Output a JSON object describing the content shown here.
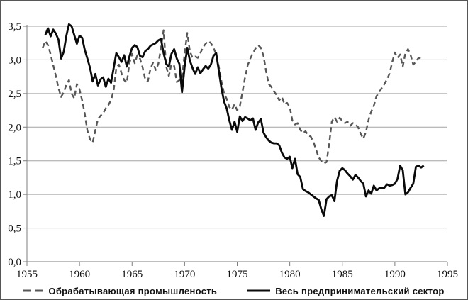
{
  "chart_data": {
    "type": "line",
    "title": "",
    "xlabel": "",
    "ylabel": "",
    "xlim": [
      1955,
      1995
    ],
    "ylim": [
      0,
      3.5
    ],
    "grid": true,
    "legend_position": "bottom",
    "decimal_separator": ",",
    "x_ticks": [
      1955,
      1960,
      1965,
      1970,
      1975,
      1980,
      1985,
      1990,
      1995
    ],
    "y_ticks": [
      {
        "value": 0.0,
        "label": "0,0"
      },
      {
        "value": 0.5,
        "label": "0,5"
      },
      {
        "value": 1.0,
        "label": "1,0"
      },
      {
        "value": 1.5,
        "label": "1,5"
      },
      {
        "value": 2.0,
        "label": "2,0"
      },
      {
        "value": 2.5,
        "label": "2,5"
      },
      {
        "value": 3.0,
        "label": "3,0"
      },
      {
        "value": 3.5,
        "label": "3,5"
      }
    ],
    "colors": {
      "grid": "#a3a3a3",
      "axis": "#7d7d7d",
      "label": "#111111"
    },
    "series": [
      {
        "name": "Обрабатывающая промышленость",
        "style": "dashed",
        "color": "#575757",
        "points": [
          [
            1956.5,
            3.18
          ],
          [
            1956.75,
            3.28
          ],
          [
            1957.0,
            3.22
          ],
          [
            1957.25,
            3.08
          ],
          [
            1957.5,
            2.92
          ],
          [
            1957.75,
            2.76
          ],
          [
            1958.0,
            2.58
          ],
          [
            1958.25,
            2.45
          ],
          [
            1958.5,
            2.52
          ],
          [
            1958.75,
            2.63
          ],
          [
            1959.0,
            2.7
          ],
          [
            1959.25,
            2.5
          ],
          [
            1959.5,
            2.43
          ],
          [
            1959.75,
            2.64
          ],
          [
            1960.0,
            2.56
          ],
          [
            1960.25,
            2.4
          ],
          [
            1960.5,
            2.2
          ],
          [
            1960.75,
            1.95
          ],
          [
            1961.0,
            1.82
          ],
          [
            1961.25,
            1.77
          ],
          [
            1961.5,
            1.95
          ],
          [
            1961.75,
            2.12
          ],
          [
            1962.0,
            2.17
          ],
          [
            1962.25,
            2.21
          ],
          [
            1962.5,
            2.28
          ],
          [
            1962.75,
            2.33
          ],
          [
            1963.0,
            2.4
          ],
          [
            1963.25,
            2.55
          ],
          [
            1963.5,
            2.88
          ],
          [
            1963.75,
            2.93
          ],
          [
            1964.0,
            2.8
          ],
          [
            1964.25,
            2.7
          ],
          [
            1964.5,
            2.66
          ],
          [
            1964.75,
            2.95
          ],
          [
            1965.0,
            3.09
          ],
          [
            1965.25,
            2.95
          ],
          [
            1965.5,
            3.07
          ],
          [
            1965.75,
            3.02
          ],
          [
            1966.0,
            2.89
          ],
          [
            1966.25,
            2.71
          ],
          [
            1966.5,
            2.68
          ],
          [
            1966.75,
            2.87
          ],
          [
            1967.0,
            2.96
          ],
          [
            1967.25,
            2.85
          ],
          [
            1967.5,
            2.94
          ],
          [
            1967.75,
            3.18
          ],
          [
            1968.0,
            3.44
          ],
          [
            1968.25,
            2.9
          ],
          [
            1968.5,
            2.76
          ],
          [
            1968.75,
            2.94
          ],
          [
            1969.0,
            2.91
          ],
          [
            1969.25,
            2.67
          ],
          [
            1969.5,
            2.7
          ],
          [
            1969.75,
            2.72
          ],
          [
            1970.0,
            3.1
          ],
          [
            1970.25,
            3.4
          ],
          [
            1970.5,
            3.13
          ],
          [
            1970.75,
            3.03
          ],
          [
            1971.0,
            3.05
          ],
          [
            1971.25,
            3.03
          ],
          [
            1971.5,
            3.1
          ],
          [
            1971.75,
            3.19
          ],
          [
            1972.0,
            3.24
          ],
          [
            1972.25,
            3.28
          ],
          [
            1972.5,
            3.25
          ],
          [
            1972.75,
            3.18
          ],
          [
            1973.0,
            3.08
          ],
          [
            1973.25,
            2.9
          ],
          [
            1973.5,
            2.68
          ],
          [
            1973.75,
            2.5
          ],
          [
            1974.0,
            2.42
          ],
          [
            1974.25,
            2.3
          ],
          [
            1974.5,
            2.26
          ],
          [
            1974.75,
            2.34
          ],
          [
            1975.0,
            2.25
          ],
          [
            1975.25,
            2.31
          ],
          [
            1975.5,
            2.52
          ],
          [
            1975.75,
            2.74
          ],
          [
            1976.0,
            2.92
          ],
          [
            1976.25,
            3.02
          ],
          [
            1976.5,
            3.1
          ],
          [
            1976.75,
            3.17
          ],
          [
            1977.0,
            3.22
          ],
          [
            1977.25,
            3.18
          ],
          [
            1977.5,
            3.06
          ],
          [
            1977.75,
            2.83
          ],
          [
            1978.0,
            2.64
          ],
          [
            1978.25,
            2.6
          ],
          [
            1978.5,
            2.53
          ],
          [
            1978.75,
            2.48
          ],
          [
            1979.0,
            2.4
          ],
          [
            1979.25,
            2.45
          ],
          [
            1979.5,
            2.34
          ],
          [
            1979.75,
            2.36
          ],
          [
            1980.0,
            2.3
          ],
          [
            1980.25,
            2.1
          ],
          [
            1980.5,
            2.04
          ],
          [
            1980.75,
            2.06
          ],
          [
            1981.0,
            1.96
          ],
          [
            1981.25,
            1.91
          ],
          [
            1981.5,
            1.94
          ],
          [
            1981.75,
            1.88
          ],
          [
            1982.0,
            1.86
          ],
          [
            1982.25,
            1.78
          ],
          [
            1982.5,
            1.67
          ],
          [
            1982.75,
            1.55
          ],
          [
            1983.0,
            1.5
          ],
          [
            1983.25,
            1.46
          ],
          [
            1983.5,
            1.48
          ],
          [
            1983.75,
            1.75
          ],
          [
            1984.0,
            2.08
          ],
          [
            1984.25,
            2.15
          ],
          [
            1984.5,
            2.08
          ],
          [
            1984.75,
            2.14
          ],
          [
            1985.0,
            2.09
          ],
          [
            1985.25,
            2.06
          ],
          [
            1985.5,
            2.08
          ],
          [
            1985.75,
            2.02
          ],
          [
            1986.0,
            2.06
          ],
          [
            1986.25,
            2.04
          ],
          [
            1986.5,
            2.0
          ],
          [
            1986.75,
            1.9
          ],
          [
            1987.0,
            1.83
          ],
          [
            1987.25,
            1.93
          ],
          [
            1987.5,
            2.11
          ],
          [
            1987.75,
            2.23
          ],
          [
            1988.0,
            2.32
          ],
          [
            1988.25,
            2.46
          ],
          [
            1988.5,
            2.52
          ],
          [
            1988.75,
            2.58
          ],
          [
            1989.0,
            2.64
          ],
          [
            1989.25,
            2.71
          ],
          [
            1989.5,
            2.8
          ],
          [
            1989.75,
            2.97
          ],
          [
            1990.0,
            3.11
          ],
          [
            1990.25,
            3.03
          ],
          [
            1990.5,
            3.08
          ],
          [
            1990.75,
            2.9
          ],
          [
            1991.0,
            3.1
          ],
          [
            1991.25,
            3.16
          ],
          [
            1991.5,
            3.07
          ],
          [
            1991.75,
            2.93
          ],
          [
            1992.0,
            2.97
          ],
          [
            1992.25,
            3.03
          ],
          [
            1992.5,
            3.02
          ]
        ]
      },
      {
        "name": "Весь предпринимательский сектор",
        "style": "solid",
        "color": "#0a0a0a",
        "points": [
          [
            1956.75,
            3.37
          ],
          [
            1957.0,
            3.47
          ],
          [
            1957.25,
            3.35
          ],
          [
            1957.5,
            3.45
          ],
          [
            1957.75,
            3.39
          ],
          [
            1958.0,
            3.3
          ],
          [
            1958.25,
            3.02
          ],
          [
            1958.5,
            3.12
          ],
          [
            1958.75,
            3.36
          ],
          [
            1959.0,
            3.53
          ],
          [
            1959.25,
            3.5
          ],
          [
            1959.5,
            3.37
          ],
          [
            1959.75,
            3.24
          ],
          [
            1960.0,
            3.36
          ],
          [
            1960.25,
            3.33
          ],
          [
            1960.5,
            3.15
          ],
          [
            1960.75,
            3.02
          ],
          [
            1961.0,
            2.88
          ],
          [
            1961.25,
            2.68
          ],
          [
            1961.5,
            2.79
          ],
          [
            1961.75,
            2.62
          ],
          [
            1962.0,
            2.71
          ],
          [
            1962.25,
            2.74
          ],
          [
            1962.5,
            2.6
          ],
          [
            1962.75,
            2.72
          ],
          [
            1963.0,
            2.66
          ],
          [
            1963.25,
            2.88
          ],
          [
            1963.5,
            3.1
          ],
          [
            1963.75,
            3.04
          ],
          [
            1964.0,
            2.97
          ],
          [
            1964.25,
            3.07
          ],
          [
            1964.5,
            2.9
          ],
          [
            1964.75,
            3.05
          ],
          [
            1965.0,
            3.18
          ],
          [
            1965.25,
            3.22
          ],
          [
            1965.5,
            3.19
          ],
          [
            1965.75,
            3.06
          ],
          [
            1966.0,
            3.04
          ],
          [
            1966.25,
            3.13
          ],
          [
            1966.5,
            3.16
          ],
          [
            1966.75,
            3.21
          ],
          [
            1967.0,
            3.23
          ],
          [
            1967.25,
            3.25
          ],
          [
            1967.5,
            3.29
          ],
          [
            1967.75,
            3.31
          ],
          [
            1968.0,
            3.1
          ],
          [
            1968.25,
            2.94
          ],
          [
            1968.5,
            2.9
          ],
          [
            1968.75,
            3.09
          ],
          [
            1969.0,
            3.16
          ],
          [
            1969.25,
            3.02
          ],
          [
            1969.5,
            2.94
          ],
          [
            1969.75,
            2.52
          ],
          [
            1970.0,
            2.9
          ],
          [
            1970.25,
            3.18
          ],
          [
            1970.5,
            2.99
          ],
          [
            1970.75,
            2.88
          ],
          [
            1971.0,
            2.79
          ],
          [
            1971.25,
            2.89
          ],
          [
            1971.5,
            2.8
          ],
          [
            1971.75,
            2.86
          ],
          [
            1972.0,
            2.91
          ],
          [
            1972.25,
            2.87
          ],
          [
            1972.5,
            2.93
          ],
          [
            1972.75,
            3.06
          ],
          [
            1973.0,
            3.1
          ],
          [
            1973.25,
            2.84
          ],
          [
            1973.5,
            2.58
          ],
          [
            1973.75,
            2.38
          ],
          [
            1974.0,
            2.28
          ],
          [
            1974.25,
            2.1
          ],
          [
            1974.5,
            1.96
          ],
          [
            1974.75,
            2.08
          ],
          [
            1975.0,
            1.93
          ],
          [
            1975.25,
            2.16
          ],
          [
            1975.5,
            2.09
          ],
          [
            1975.75,
            2.15
          ],
          [
            1976.0,
            2.13
          ],
          [
            1976.25,
            2.1
          ],
          [
            1976.5,
            2.13
          ],
          [
            1976.75,
            1.96
          ],
          [
            1977.0,
            2.07
          ],
          [
            1977.25,
            2.12
          ],
          [
            1977.5,
            1.92
          ],
          [
            1977.75,
            1.85
          ],
          [
            1978.0,
            1.8
          ],
          [
            1978.25,
            1.77
          ],
          [
            1978.5,
            1.76
          ],
          [
            1978.75,
            1.76
          ],
          [
            1979.0,
            1.73
          ],
          [
            1979.25,
            1.62
          ],
          [
            1979.5,
            1.55
          ],
          [
            1979.75,
            1.53
          ],
          [
            1980.0,
            1.56
          ],
          [
            1980.25,
            1.39
          ],
          [
            1980.5,
            1.53
          ],
          [
            1980.75,
            1.3
          ],
          [
            1981.0,
            1.26
          ],
          [
            1981.25,
            1.08
          ],
          [
            1981.5,
            1.05
          ],
          [
            1981.75,
            1.03
          ],
          [
            1982.0,
            1.0
          ],
          [
            1982.25,
            0.97
          ],
          [
            1982.5,
            0.94
          ],
          [
            1982.75,
            0.92
          ],
          [
            1983.0,
            0.78
          ],
          [
            1983.25,
            0.68
          ],
          [
            1983.5,
            0.93
          ],
          [
            1983.75,
            0.97
          ],
          [
            1984.0,
            0.99
          ],
          [
            1984.25,
            0.9
          ],
          [
            1984.5,
            1.2
          ],
          [
            1984.75,
            1.35
          ],
          [
            1985.0,
            1.39
          ],
          [
            1985.25,
            1.36
          ],
          [
            1985.5,
            1.31
          ],
          [
            1985.75,
            1.27
          ],
          [
            1986.0,
            1.22
          ],
          [
            1986.25,
            1.29
          ],
          [
            1986.5,
            1.25
          ],
          [
            1986.75,
            1.2
          ],
          [
            1987.0,
            1.16
          ],
          [
            1987.25,
            0.97
          ],
          [
            1987.5,
            1.06
          ],
          [
            1987.75,
            1.01
          ],
          [
            1988.0,
            1.13
          ],
          [
            1988.25,
            1.06
          ],
          [
            1988.5,
            1.09
          ],
          [
            1988.75,
            1.1
          ],
          [
            1989.0,
            1.1
          ],
          [
            1989.25,
            1.15
          ],
          [
            1989.5,
            1.13
          ],
          [
            1989.75,
            1.14
          ],
          [
            1990.0,
            1.16
          ],
          [
            1990.25,
            1.23
          ],
          [
            1990.5,
            1.43
          ],
          [
            1990.75,
            1.36
          ],
          [
            1991.0,
            1.0
          ],
          [
            1991.25,
            1.03
          ],
          [
            1991.5,
            1.1
          ],
          [
            1991.75,
            1.16
          ],
          [
            1992.0,
            1.41
          ],
          [
            1992.25,
            1.43
          ],
          [
            1992.5,
            1.4
          ],
          [
            1992.75,
            1.43
          ]
        ]
      }
    ]
  }
}
